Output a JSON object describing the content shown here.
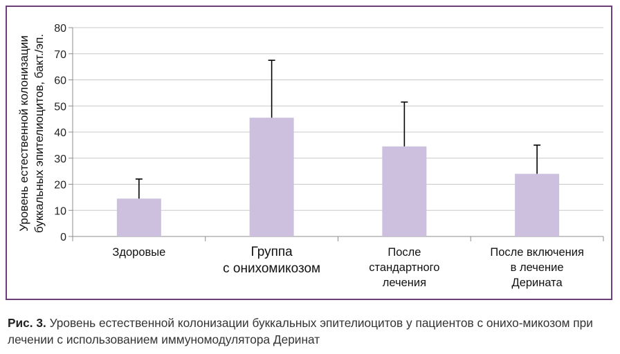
{
  "chart_data": {
    "type": "bar",
    "title": "",
    "ylabel": [
      "Уровень естественной колонизации",
      "буккальных эпителиоцитов, бакт./эп."
    ],
    "ylim": [
      0,
      80
    ],
    "yticks": [
      "0",
      "10",
      "20",
      "30",
      "40",
      "50",
      "60",
      "70",
      "80"
    ],
    "grid": true,
    "bar_color": "#ccc0de",
    "categories": [
      [
        "Здоровые"
      ],
      [
        "Группа",
        "с онихомикозом"
      ],
      [
        "После",
        "стандартного",
        "лечения"
      ],
      [
        "После включения",
        "в лечение",
        "Дерината"
      ]
    ],
    "values": [
      14.5,
      45.5,
      34.5,
      24
    ],
    "error_upper": [
      22,
      67.5,
      51.5,
      35
    ]
  },
  "caption": {
    "label": "Рис. 3.",
    "text": "Уровень естественной колонизации буккальных эпителиоцитов у пациентов с онихо-микозом при лечении с использованием иммуномодулятора Деринат"
  }
}
